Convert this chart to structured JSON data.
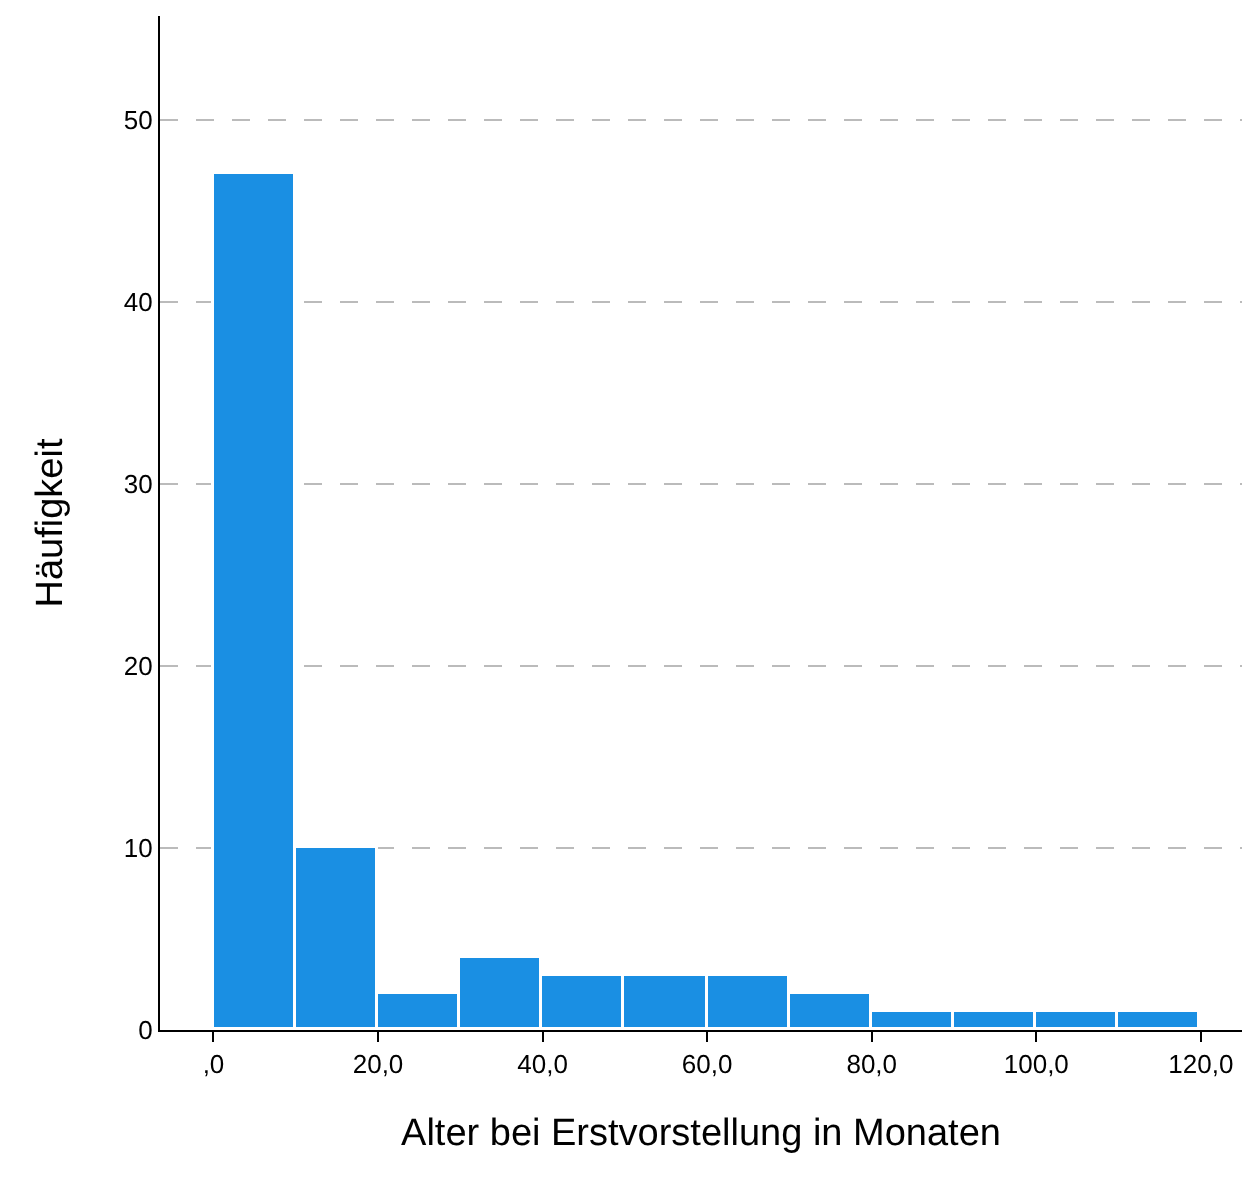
{
  "chart_data": {
    "type": "histogram",
    "xlabel": "Alter bei Erstvorstellung in Monaten",
    "ylabel": "Häufigkeit",
    "bins": [
      0,
      10,
      20,
      30,
      40,
      50,
      60,
      70,
      80,
      90,
      100,
      110,
      120
    ],
    "values": [
      47,
      10,
      2,
      4,
      3,
      3,
      3,
      2,
      1,
      1,
      1,
      1
    ],
    "color": "#1a8fe3",
    "xlim": [
      -6.5,
      125
    ],
    "xticks": [
      {
        "value": 0,
        "label": ",0"
      },
      {
        "value": 20,
        "label": "20,0"
      },
      {
        "value": 40,
        "label": "40,0"
      },
      {
        "value": 60,
        "label": "60,0"
      },
      {
        "value": 80,
        "label": "80,0"
      },
      {
        "value": 100,
        "label": "100,0"
      },
      {
        "value": 120,
        "label": "120,0"
      }
    ],
    "ylim": [
      0,
      55.7
    ],
    "yticks": [
      0,
      10,
      20,
      30,
      40,
      50
    ],
    "grid": "y"
  }
}
